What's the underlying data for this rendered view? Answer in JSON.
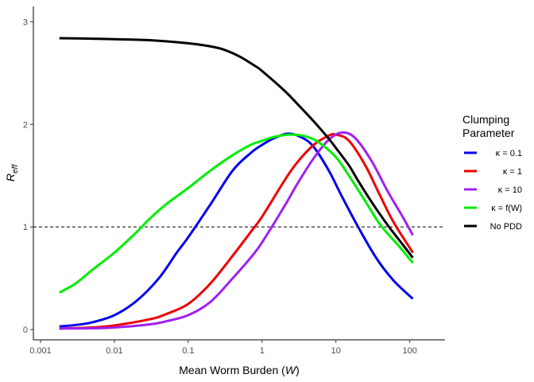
{
  "chart_data": {
    "type": "line",
    "xlabel": "Mean Worm Burden (W)",
    "xlabel_main": "Mean Worm Burden (",
    "xlabel_var": "W",
    "xlabel_close": ")",
    "ylabel": "R_eff",
    "ylabel_main": "R",
    "ylabel_sub": "eff",
    "x_scale": "log10",
    "xlim": [
      0.0008,
      300
    ],
    "ylim": [
      -0.1,
      3.15
    ],
    "x_ticks": [
      0.001,
      0.01,
      0.1,
      1,
      10,
      100
    ],
    "x_tick_labels": [
      "0.001",
      "0.01",
      "0.1",
      "1",
      "10",
      "100"
    ],
    "y_ticks": [
      0,
      1,
      2,
      3
    ],
    "y_tick_labels": [
      "0",
      "1",
      "2",
      "3"
    ],
    "grid": false,
    "legend_title_lines": [
      "Clumping",
      "Parameter"
    ],
    "legend_position": "right",
    "reference_line": {
      "y": 1,
      "style": "dashed",
      "color": "#000000"
    },
    "series": [
      {
        "name": "κ = 0.1",
        "color": "#0000ee",
        "points": [
          [
            0.0018,
            0.03
          ],
          [
            0.003,
            0.045
          ],
          [
            0.005,
            0.07
          ],
          [
            0.01,
            0.14
          ],
          [
            0.02,
            0.28
          ],
          [
            0.04,
            0.5
          ],
          [
            0.07,
            0.75
          ],
          [
            0.1,
            0.9
          ],
          [
            0.2,
            1.22
          ],
          [
            0.4,
            1.55
          ],
          [
            0.7,
            1.72
          ],
          [
            1,
            1.8
          ],
          [
            1.5,
            1.87
          ],
          [
            2.3,
            1.91
          ],
          [
            3.5,
            1.87
          ],
          [
            5,
            1.78
          ],
          [
            8,
            1.55
          ],
          [
            12,
            1.3
          ],
          [
            20,
            1.0
          ],
          [
            35,
            0.7
          ],
          [
            60,
            0.48
          ],
          [
            110,
            0.3
          ]
        ]
      },
      {
        "name": "κ = 1",
        "color": "#ee0000",
        "points": [
          [
            0.0018,
            0.01
          ],
          [
            0.005,
            0.02
          ],
          [
            0.01,
            0.04
          ],
          [
            0.03,
            0.1
          ],
          [
            0.05,
            0.15
          ],
          [
            0.1,
            0.25
          ],
          [
            0.2,
            0.45
          ],
          [
            0.4,
            0.72
          ],
          [
            0.7,
            0.95
          ],
          [
            1,
            1.1
          ],
          [
            2,
            1.45
          ],
          [
            3,
            1.63
          ],
          [
            5,
            1.8
          ],
          [
            8,
            1.89
          ],
          [
            10,
            1.9
          ],
          [
            15,
            1.84
          ],
          [
            25,
            1.6
          ],
          [
            40,
            1.3
          ],
          [
            60,
            1.05
          ],
          [
            110,
            0.75
          ]
        ]
      },
      {
        "name": "κ = 10",
        "color": "#a020f0",
        "points": [
          [
            0.0018,
            0.01
          ],
          [
            0.005,
            0.012
          ],
          [
            0.01,
            0.02
          ],
          [
            0.03,
            0.05
          ],
          [
            0.05,
            0.08
          ],
          [
            0.1,
            0.14
          ],
          [
            0.2,
            0.27
          ],
          [
            0.4,
            0.5
          ],
          [
            0.7,
            0.7
          ],
          [
            1,
            0.85
          ],
          [
            2,
            1.2
          ],
          [
            3,
            1.42
          ],
          [
            5,
            1.67
          ],
          [
            8,
            1.85
          ],
          [
            12,
            1.92
          ],
          [
            18,
            1.87
          ],
          [
            30,
            1.65
          ],
          [
            50,
            1.35
          ],
          [
            80,
            1.1
          ],
          [
            110,
            0.92
          ]
        ]
      },
      {
        "name": "κ = f(W)",
        "color": "#00ee00",
        "points": [
          [
            0.0018,
            0.36
          ],
          [
            0.003,
            0.45
          ],
          [
            0.005,
            0.58
          ],
          [
            0.01,
            0.75
          ],
          [
            0.02,
            0.95
          ],
          [
            0.03,
            1.08
          ],
          [
            0.05,
            1.22
          ],
          [
            0.1,
            1.38
          ],
          [
            0.2,
            1.55
          ],
          [
            0.4,
            1.7
          ],
          [
            0.7,
            1.8
          ],
          [
            1,
            1.84
          ],
          [
            1.5,
            1.88
          ],
          [
            2.5,
            1.9
          ],
          [
            4,
            1.88
          ],
          [
            6,
            1.82
          ],
          [
            10,
            1.68
          ],
          [
            15,
            1.5
          ],
          [
            25,
            1.25
          ],
          [
            40,
            1.02
          ],
          [
            70,
            0.82
          ],
          [
            110,
            0.65
          ]
        ]
      },
      {
        "name": "No PDD",
        "color": "#000000",
        "points": [
          [
            0.0018,
            2.84
          ],
          [
            0.005,
            2.835
          ],
          [
            0.01,
            2.83
          ],
          [
            0.03,
            2.82
          ],
          [
            0.1,
            2.79
          ],
          [
            0.2,
            2.76
          ],
          [
            0.3,
            2.73
          ],
          [
            0.5,
            2.66
          ],
          [
            0.8,
            2.57
          ],
          [
            1,
            2.52
          ],
          [
            2,
            2.33
          ],
          [
            3,
            2.2
          ],
          [
            5,
            2.03
          ],
          [
            8,
            1.86
          ],
          [
            10,
            1.77
          ],
          [
            15,
            1.6
          ],
          [
            20,
            1.45
          ],
          [
            30,
            1.25
          ],
          [
            50,
            1.02
          ],
          [
            80,
            0.83
          ],
          [
            110,
            0.7
          ]
        ]
      }
    ]
  },
  "legend": {
    "items": [
      {
        "label": "κ = 0.1",
        "color": "#0000ee"
      },
      {
        "label": "κ = 1",
        "color": "#ee0000"
      },
      {
        "label": "κ = 10",
        "color": "#a020f0"
      },
      {
        "label": "κ = f(W)",
        "color": "#00ee00"
      },
      {
        "label": "No PDD",
        "color": "#000000"
      }
    ]
  }
}
